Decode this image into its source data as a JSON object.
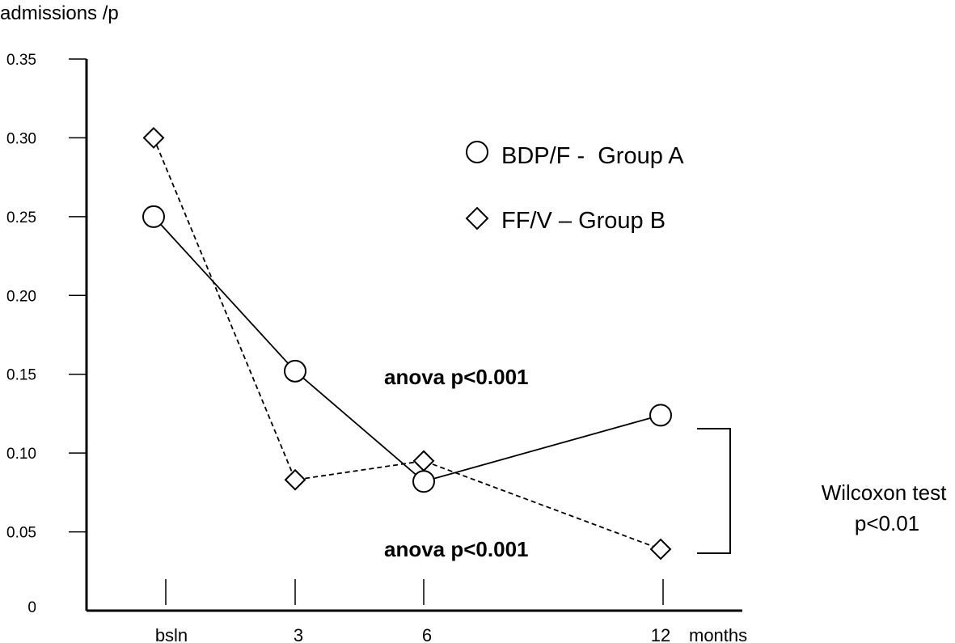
{
  "chart_data": {
    "type": "line",
    "ylabel": "admissions /p",
    "xlabel": "months",
    "categories": [
      "bsln",
      "3",
      "6",
      "12"
    ],
    "x_values": [
      0,
      3,
      6,
      12
    ],
    "ylim": [
      0,
      0.35
    ],
    "yticks": [
      "0",
      "0.05",
      "0.10",
      "0.15",
      "0.20",
      "0.25",
      "0.30",
      "0.35"
    ],
    "ytick_values": [
      0,
      0.05,
      0.1,
      0.15,
      0.2,
      0.25,
      0.3,
      0.35
    ],
    "grid": false,
    "legend_position": "top-right",
    "series": [
      {
        "name": "BDP/F -  Group A",
        "marker": "circle",
        "line": "solid",
        "values": [
          0.25,
          0.152,
          0.082,
          0.124
        ]
      },
      {
        "name": "FF/V – Group B",
        "marker": "diamond",
        "line": "dashed",
        "values": [
          0.3,
          0.083,
          0.095,
          0.039
        ]
      }
    ],
    "annotations": [
      {
        "id": "anova_a",
        "text": "anova p<0.001",
        "bold": true
      },
      {
        "id": "anova_b",
        "text": "anova p<0.001",
        "bold": true
      },
      {
        "id": "wilcoxon_1",
        "text": "Wilcoxon test",
        "bold": false
      },
      {
        "id": "wilcoxon_2",
        "text": "p<0.01",
        "bold": false
      }
    ]
  }
}
